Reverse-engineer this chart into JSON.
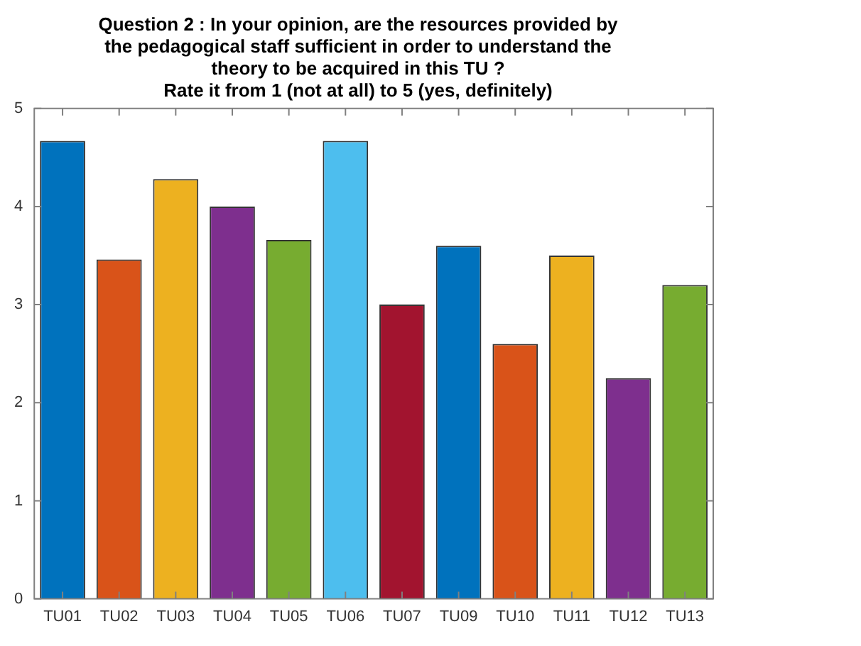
{
  "chart_data": {
    "type": "bar",
    "title": "Question 2 : In your opinion, are the resources provided by\nthe pedagogical staff sufficient in order to understand the\ntheory to be acquired in this TU ?\nRate it from 1 (not at all) to 5 (yes, definitely)",
    "categories": [
      "TU01",
      "TU02",
      "TU03",
      "TU04",
      "TU05",
      "TU06",
      "TU07",
      "TU09",
      "TU10",
      "TU11",
      "TU12",
      "TU13"
    ],
    "values": [
      4.67,
      3.46,
      4.28,
      4.0,
      3.66,
      4.67,
      3.0,
      3.6,
      2.6,
      3.5,
      2.25,
      3.2
    ],
    "colors": [
      "#0072bd",
      "#d95319",
      "#edb120",
      "#7e2f8e",
      "#77ac30",
      "#4dbeee",
      "#a2142f",
      "#0072bd",
      "#d95319",
      "#edb120",
      "#7e2f8e",
      "#77ac30"
    ],
    "ylim": [
      0,
      5
    ],
    "yticks": [
      0,
      1,
      2,
      3,
      4,
      5
    ],
    "grid": false
  }
}
